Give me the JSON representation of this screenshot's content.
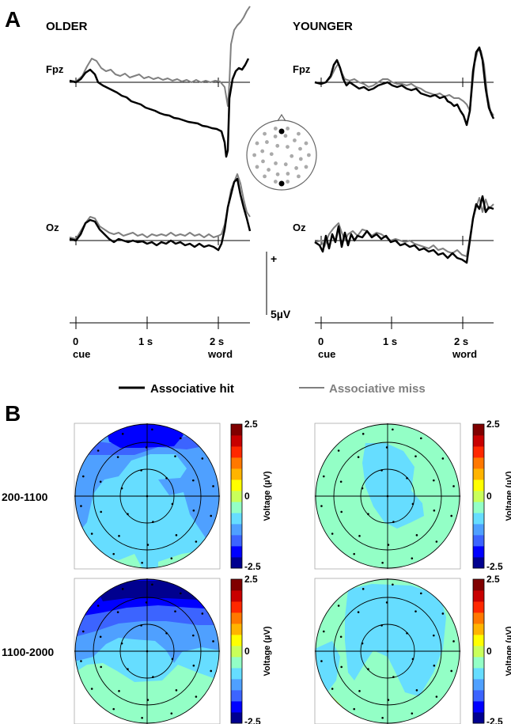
{
  "panel_a": {
    "label": "A",
    "groups": [
      {
        "key": "older",
        "title": "OLDER"
      },
      {
        "key": "younger",
        "title": "YOUNGER"
      }
    ],
    "channels": [
      "Fpz",
      "Oz"
    ],
    "scale": {
      "polarity": "+",
      "amplitude": "5µV"
    },
    "time_axis": {
      "ticks": [
        {
          "t": 0,
          "label": "0"
        },
        {
          "t": 1,
          "label": "1 s"
        },
        {
          "t": 2,
          "label": "2 s"
        }
      ],
      "events": [
        {
          "t": 0,
          "label": "cue"
        },
        {
          "t": 2,
          "label": "word"
        }
      ]
    },
    "legend": [
      {
        "name": "Associative hit",
        "color": "#000000"
      },
      {
        "name": "Associative miss",
        "color": "#808080"
      }
    ]
  },
  "panel_b": {
    "label": "B",
    "windows": [
      "200-1100",
      "1100-2000"
    ],
    "colorbar": {
      "title": "Voltage (µV)",
      "max": "2.5",
      "mid": "0",
      "min": "-2.5",
      "colors": [
        "#00008f",
        "#0000ff",
        "#3c64ff",
        "#4fa0ff",
        "#66ddff",
        "#93ffc6",
        "#c9ff5a",
        "#ffff00",
        "#ffb400",
        "#ff7800",
        "#ff2800",
        "#c80000",
        "#800000"
      ]
    }
  }
}
